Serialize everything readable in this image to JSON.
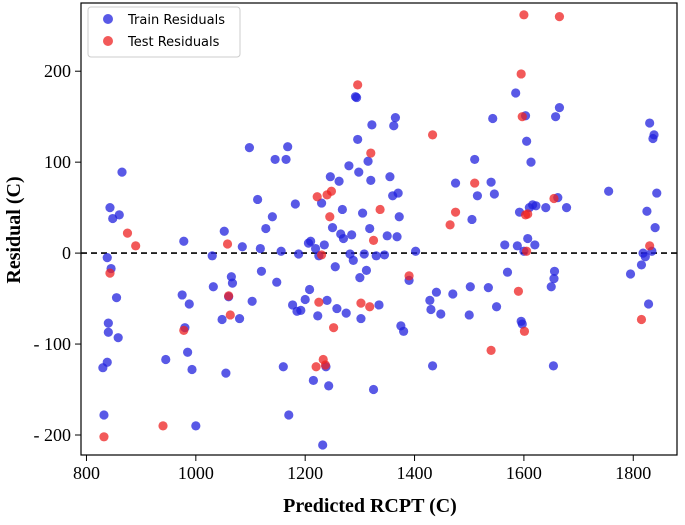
{
  "chart_data": {
    "type": "scatter",
    "title": "",
    "xlabel": "Predicted RCPT (C)",
    "ylabel": "Residual (C)",
    "xlim": [
      790,
      1880
    ],
    "ylim": [
      -222,
      275
    ],
    "xticks": [
      800,
      1000,
      1200,
      1400,
      1600,
      1800
    ],
    "yticks": [
      200,
      100,
      0,
      -100,
      -200
    ],
    "ytick_labels": [
      "200",
      "100",
      "0",
      "- 100",
      "- 200"
    ],
    "reference_line": {
      "y": 0,
      "style": "dashed",
      "color": "#000000"
    },
    "legend": {
      "position": "top-left",
      "entries": [
        "Train Residuals",
        "Test Residuals"
      ]
    },
    "series": [
      {
        "name": "Train Residuals",
        "color": "#2222dd",
        "points": [
          [
            830,
            -126
          ],
          [
            832,
            -178
          ],
          [
            838,
            -5
          ],
          [
            838,
            -120
          ],
          [
            840,
            -87
          ],
          [
            840,
            -77
          ],
          [
            843,
            50
          ],
          [
            845,
            -17
          ],
          [
            848,
            38
          ],
          [
            855,
            -49
          ],
          [
            858,
            -93
          ],
          [
            860,
            42
          ],
          [
            865,
            89
          ],
          [
            945,
            -117
          ],
          [
            975,
            -46
          ],
          [
            978,
            13
          ],
          [
            980,
            -82
          ],
          [
            985,
            -109
          ],
          [
            988,
            -56
          ],
          [
            993,
            -128
          ],
          [
            1000,
            -190
          ],
          [
            1030,
            -3
          ],
          [
            1032,
            -37
          ],
          [
            1048,
            -73
          ],
          [
            1052,
            24
          ],
          [
            1055,
            -132
          ],
          [
            1060,
            -48
          ],
          [
            1065,
            -26
          ],
          [
            1067,
            -33
          ],
          [
            1080,
            -72
          ],
          [
            1085,
            7
          ],
          [
            1098,
            116
          ],
          [
            1103,
            -53
          ],
          [
            1113,
            59
          ],
          [
            1118,
            5
          ],
          [
            1120,
            -20
          ],
          [
            1128,
            27
          ],
          [
            1140,
            40
          ],
          [
            1145,
            103
          ],
          [
            1148,
            -32
          ],
          [
            1156,
            2
          ],
          [
            1160,
            -125
          ],
          [
            1165,
            103
          ],
          [
            1168,
            117
          ],
          [
            1170,
            -178
          ],
          [
            1177,
            -57
          ],
          [
            1182,
            54
          ],
          [
            1185,
            -64
          ],
          [
            1188,
            -1
          ],
          [
            1192,
            -63
          ],
          [
            1200,
            -51
          ],
          [
            1206,
            11
          ],
          [
            1208,
            -40
          ],
          [
            1210,
            13
          ],
          [
            1215,
            -140
          ],
          [
            1219,
            5
          ],
          [
            1223,
            -69
          ],
          [
            1225,
            -3
          ],
          [
            1230,
            55
          ],
          [
            1232,
            -211
          ],
          [
            1235,
            9
          ],
          [
            1238,
            -125
          ],
          [
            1240,
            -52
          ],
          [
            1243,
            -146
          ],
          [
            1246,
            84
          ],
          [
            1250,
            28
          ],
          [
            1255,
            -15
          ],
          [
            1258,
            -61
          ],
          [
            1262,
            79
          ],
          [
            1265,
            21
          ],
          [
            1268,
            48
          ],
          [
            1270,
            16
          ],
          [
            1275,
            -66
          ],
          [
            1280,
            96
          ],
          [
            1282,
            -1
          ],
          [
            1285,
            20
          ],
          [
            1288,
            -8
          ],
          [
            1292,
            172
          ],
          [
            1294,
            171
          ],
          [
            1296,
            125
          ],
          [
            1298,
            89
          ],
          [
            1300,
            -27
          ],
          [
            1302,
            -72
          ],
          [
            1305,
            44
          ],
          [
            1308,
            -1
          ],
          [
            1312,
            -19
          ],
          [
            1315,
            101
          ],
          [
            1318,
            27
          ],
          [
            1320,
            80
          ],
          [
            1322,
            141
          ],
          [
            1325,
            -150
          ],
          [
            1330,
            -3
          ],
          [
            1335,
            -57
          ],
          [
            1345,
            -2
          ],
          [
            1350,
            19
          ],
          [
            1355,
            84
          ],
          [
            1360,
            63
          ],
          [
            1362,
            140
          ],
          [
            1365,
            149
          ],
          [
            1368,
            18
          ],
          [
            1370,
            66
          ],
          [
            1372,
            40
          ],
          [
            1375,
            -80
          ],
          [
            1380,
            -86
          ],
          [
            1390,
            -30
          ],
          [
            1402,
            2
          ],
          [
            1428,
            -52
          ],
          [
            1430,
            -62
          ],
          [
            1433,
            -124
          ],
          [
            1440,
            -43
          ],
          [
            1448,
            -67
          ],
          [
            1470,
            -45
          ],
          [
            1475,
            77
          ],
          [
            1500,
            -68
          ],
          [
            1502,
            -37
          ],
          [
            1505,
            37
          ],
          [
            1510,
            103
          ],
          [
            1515,
            63
          ],
          [
            1535,
            -38
          ],
          [
            1540,
            78
          ],
          [
            1543,
            148
          ],
          [
            1546,
            65
          ],
          [
            1550,
            -59
          ],
          [
            1565,
            9
          ],
          [
            1570,
            -21
          ],
          [
            1585,
            176
          ],
          [
            1588,
            8
          ],
          [
            1592,
            45
          ],
          [
            1595,
            -75
          ],
          [
            1597,
            -78
          ],
          [
            1600,
            2
          ],
          [
            1603,
            151
          ],
          [
            1605,
            123
          ],
          [
            1607,
            16
          ],
          [
            1610,
            50
          ],
          [
            1613,
            100
          ],
          [
            1616,
            53
          ],
          [
            1620,
            9
          ],
          [
            1622,
            52
          ],
          [
            1640,
            50
          ],
          [
            1650,
            -37
          ],
          [
            1654,
            -124
          ],
          [
            1655,
            -28
          ],
          [
            1656,
            -20
          ],
          [
            1658,
            150
          ],
          [
            1662,
            61
          ],
          [
            1665,
            160
          ],
          [
            1678,
            50
          ],
          [
            1755,
            68
          ],
          [
            1795,
            -23
          ],
          [
            1815,
            -13
          ],
          [
            1818,
            0
          ],
          [
            1822,
            -4
          ],
          [
            1825,
            46
          ],
          [
            1828,
            -56
          ],
          [
            1830,
            143
          ],
          [
            1834,
            2
          ],
          [
            1836,
            126
          ],
          [
            1838,
            130
          ],
          [
            1840,
            28
          ],
          [
            1843,
            66
          ]
        ]
      },
      {
        "name": "Test Residuals",
        "color": "#ee2222",
        "points": [
          [
            832,
            -202
          ],
          [
            843,
            -22
          ],
          [
            875,
            22
          ],
          [
            890,
            8
          ],
          [
            940,
            -190
          ],
          [
            978,
            -85
          ],
          [
            1058,
            10
          ],
          [
            1060,
            -47
          ],
          [
            1063,
            -68
          ],
          [
            1220,
            -125
          ],
          [
            1222,
            62
          ],
          [
            1225,
            -54
          ],
          [
            1230,
            -2
          ],
          [
            1233,
            -117
          ],
          [
            1237,
            -123
          ],
          [
            1240,
            64
          ],
          [
            1245,
            40
          ],
          [
            1248,
            68
          ],
          [
            1252,
            -82
          ],
          [
            1296,
            185
          ],
          [
            1302,
            -55
          ],
          [
            1318,
            -59
          ],
          [
            1320,
            110
          ],
          [
            1325,
            14
          ],
          [
            1337,
            48
          ],
          [
            1390,
            -25
          ],
          [
            1433,
            130
          ],
          [
            1465,
            31
          ],
          [
            1475,
            45
          ],
          [
            1510,
            77
          ],
          [
            1540,
            -107
          ],
          [
            1590,
            -42
          ],
          [
            1595,
            197
          ],
          [
            1597,
            150
          ],
          [
            1600,
            262
          ],
          [
            1601,
            -86
          ],
          [
            1603,
            42
          ],
          [
            1605,
            2
          ],
          [
            1607,
            43
          ],
          [
            1655,
            60
          ],
          [
            1665,
            260
          ],
          [
            1815,
            -73
          ],
          [
            1830,
            8
          ]
        ]
      }
    ]
  }
}
